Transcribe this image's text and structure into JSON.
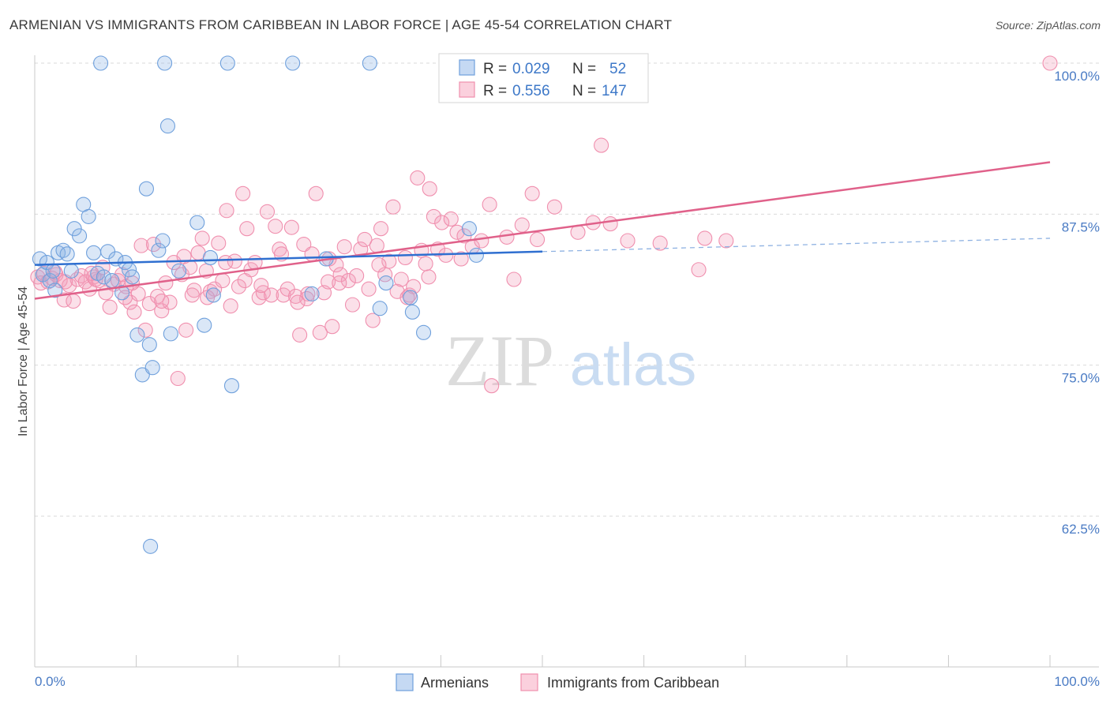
{
  "header": {
    "title": "ARMENIAN VS IMMIGRANTS FROM CARIBBEAN IN LABOR FORCE | AGE 45-54 CORRELATION CHART",
    "source": "Source: ZipAtlas.com"
  },
  "watermark": {
    "zip": "ZIP",
    "atlas": "atlas"
  },
  "legend": {
    "r_label": "R =",
    "n_label": "N =",
    "rows": [
      {
        "r": "0.029",
        "n": "52"
      },
      {
        "r": "0.556",
        "n": "147"
      }
    ]
  },
  "chart_data": {
    "type": "scatter",
    "title": "ARMENIAN VS IMMIGRANTS FROM CARIBBEAN IN LABOR FORCE | AGE 45-54 CORRELATION CHART",
    "xlabel": "",
    "ylabel": "In Labor Force | Age 45-54",
    "xlim": [
      0,
      100
    ],
    "ylim": [
      50,
      101.5
    ],
    "x_tick_labels": [
      "0.0%",
      "100.0%"
    ],
    "y_ticks": [
      62.5,
      75.0,
      87.5,
      100.0
    ],
    "y_tick_labels": [
      "62.5%",
      "75.0%",
      "87.5%",
      "100.0%"
    ],
    "grid": "horizontal dashed",
    "legend_position": "top-center",
    "colors": {
      "armenians": "#6fa0dc",
      "caribbean": "#f08fae",
      "armenians_line": "#2f6fd0",
      "caribbean_line": "#e0618a"
    },
    "series": [
      {
        "name": "Armenians",
        "r": 0.029,
        "n": 52,
        "trend": {
          "x": [
            0,
            50
          ],
          "y": [
            83.3,
            84.4
          ],
          "dashed_to": [
            100,
            85.5
          ]
        },
        "points": [
          [
            0.5,
            83.8
          ],
          [
            0.8,
            82.5
          ],
          [
            1.2,
            83.5
          ],
          [
            1.5,
            82.0
          ],
          [
            1.8,
            82.8
          ],
          [
            2.0,
            81.2
          ],
          [
            2.3,
            84.3
          ],
          [
            2.8,
            84.5
          ],
          [
            3.2,
            84.2
          ],
          [
            3.6,
            82.8
          ],
          [
            3.9,
            86.3
          ],
          [
            4.4,
            85.7
          ],
          [
            4.8,
            88.3
          ],
          [
            5.3,
            87.3
          ],
          [
            5.8,
            84.3
          ],
          [
            6.2,
            82.6
          ],
          [
            6.8,
            82.3
          ],
          [
            7.2,
            84.4
          ],
          [
            7.6,
            82.0
          ],
          [
            8.0,
            83.8
          ],
          [
            8.6,
            81.0
          ],
          [
            8.9,
            83.5
          ],
          [
            9.3,
            82.9
          ],
          [
            9.6,
            82.3
          ],
          [
            10.1,
            77.5
          ],
          [
            10.6,
            74.2
          ],
          [
            11.0,
            89.6
          ],
          [
            11.3,
            76.7
          ],
          [
            11.6,
            74.8
          ],
          [
            12.2,
            84.5
          ],
          [
            12.6,
            85.3
          ],
          [
            13.1,
            94.8
          ],
          [
            13.4,
            77.6
          ],
          [
            14.2,
            82.8
          ],
          [
            16.0,
            86.8
          ],
          [
            16.7,
            78.3
          ],
          [
            17.3,
            83.9
          ],
          [
            17.6,
            80.8
          ],
          [
            19.4,
            73.3
          ],
          [
            11.4,
            60.0
          ],
          [
            6.5,
            100
          ],
          [
            12.8,
            100
          ],
          [
            19.0,
            100
          ],
          [
            25.4,
            100
          ],
          [
            33.0,
            100
          ],
          [
            27.3,
            80.9
          ],
          [
            28.7,
            83.8
          ],
          [
            34.0,
            79.7
          ],
          [
            34.6,
            81.8
          ],
          [
            37.2,
            79.4
          ],
          [
            38.3,
            77.7
          ],
          [
            37.0,
            80.6
          ],
          [
            42.8,
            86.3
          ],
          [
            43.5,
            84.1
          ]
        ]
      },
      {
        "name": "Immigrants from Caribbean",
        "r": 0.556,
        "n": 147,
        "trend": {
          "x": [
            0,
            100
          ],
          "y": [
            80.5,
            91.8
          ]
        },
        "points": [
          [
            0.3,
            82.3
          ],
          [
            0.6,
            81.8
          ],
          [
            0.9,
            82.6
          ],
          [
            1.3,
            81.9
          ],
          [
            1.7,
            82.2
          ],
          [
            2.1,
            82.5
          ],
          [
            2.5,
            82.0
          ],
          [
            2.9,
            80.4
          ],
          [
            3.4,
            81.6
          ],
          [
            3.8,
            80.3
          ],
          [
            4.2,
            82.1
          ],
          [
            4.6,
            82.4
          ],
          [
            5.0,
            81.9
          ],
          [
            5.4,
            81.3
          ],
          [
            5.8,
            82.3
          ],
          [
            6.3,
            82.0
          ],
          [
            6.7,
            83.1
          ],
          [
            7.0,
            81.0
          ],
          [
            7.4,
            79.8
          ],
          [
            7.8,
            81.7
          ],
          [
            8.2,
            82.0
          ],
          [
            8.6,
            82.5
          ],
          [
            9.0,
            81.5
          ],
          [
            9.4,
            80.2
          ],
          [
            9.8,
            79.4
          ],
          [
            10.2,
            80.9
          ],
          [
            10.5,
            84.9
          ],
          [
            10.9,
            77.9
          ],
          [
            11.3,
            80.1
          ],
          [
            11.7,
            85.0
          ],
          [
            12.1,
            80.7
          ],
          [
            12.5,
            79.5
          ],
          [
            12.9,
            81.8
          ],
          [
            13.3,
            80.2
          ],
          [
            13.7,
            83.5
          ],
          [
            14.1,
            73.9
          ],
          [
            14.5,
            82.5
          ],
          [
            14.9,
            77.9
          ],
          [
            15.3,
            83.1
          ],
          [
            15.7,
            81.2
          ],
          [
            16.1,
            84.3
          ],
          [
            16.5,
            85.5
          ],
          [
            16.9,
            82.8
          ],
          [
            17.3,
            81.1
          ],
          [
            17.7,
            81.3
          ],
          [
            18.1,
            85.1
          ],
          [
            18.5,
            82.0
          ],
          [
            18.9,
            87.8
          ],
          [
            19.3,
            79.9
          ],
          [
            19.7,
            83.6
          ],
          [
            20.1,
            81.5
          ],
          [
            20.5,
            89.2
          ],
          [
            20.9,
            86.3
          ],
          [
            21.3,
            82.9
          ],
          [
            21.7,
            83.5
          ],
          [
            22.1,
            80.6
          ],
          [
            22.5,
            81.0
          ],
          [
            22.9,
            87.7
          ],
          [
            23.3,
            80.8
          ],
          [
            23.7,
            86.5
          ],
          [
            24.1,
            84.6
          ],
          [
            24.5,
            80.8
          ],
          [
            24.9,
            81.3
          ],
          [
            25.3,
            86.4
          ],
          [
            25.7,
            80.7
          ],
          [
            26.1,
            77.5
          ],
          [
            26.5,
            85.0
          ],
          [
            26.9,
            80.9
          ],
          [
            27.3,
            84.2
          ],
          [
            27.7,
            89.2
          ],
          [
            28.1,
            77.7
          ],
          [
            28.5,
            81.0
          ],
          [
            28.9,
            81.9
          ],
          [
            29.3,
            78.2
          ],
          [
            29.7,
            83.3
          ],
          [
            30.1,
            82.5
          ],
          [
            30.5,
            84.8
          ],
          [
            30.9,
            82.0
          ],
          [
            31.3,
            80.0
          ],
          [
            31.7,
            82.4
          ],
          [
            32.1,
            84.6
          ],
          [
            32.5,
            85.4
          ],
          [
            32.9,
            81.3
          ],
          [
            33.3,
            78.7
          ],
          [
            33.7,
            84.9
          ],
          [
            34.1,
            86.3
          ],
          [
            34.5,
            82.5
          ],
          [
            34.9,
            83.6
          ],
          [
            35.3,
            88.1
          ],
          [
            35.7,
            81.1
          ],
          [
            36.1,
            82.1
          ],
          [
            36.5,
            83.9
          ],
          [
            36.9,
            80.8
          ],
          [
            37.3,
            81.5
          ],
          [
            37.7,
            90.5
          ],
          [
            38.1,
            84.5
          ],
          [
            38.5,
            83.4
          ],
          [
            38.9,
            89.6
          ],
          [
            39.3,
            87.3
          ],
          [
            39.7,
            84.6
          ],
          [
            40.1,
            86.8
          ],
          [
            40.5,
            84.1
          ],
          [
            41.0,
            87.1
          ],
          [
            41.6,
            86.0
          ],
          [
            42.3,
            85.7
          ],
          [
            43.1,
            84.8
          ],
          [
            44.0,
            85.3
          ],
          [
            45.0,
            73.3
          ],
          [
            46.5,
            85.6
          ],
          [
            47.2,
            82.1
          ],
          [
            48.0,
            86.6
          ],
          [
            49.5,
            85.4
          ],
          [
            51.2,
            88.1
          ],
          [
            53.5,
            86.0
          ],
          [
            55.0,
            86.8
          ],
          [
            55.8,
            93.2
          ],
          [
            56.7,
            86.7
          ],
          [
            58.4,
            85.3
          ],
          [
            61.6,
            85.1
          ],
          [
            65.4,
            82.9
          ],
          [
            66.0,
            85.5
          ],
          [
            68.1,
            85.3
          ],
          [
            100.0,
            100.0
          ],
          [
            12.5,
            80.3
          ],
          [
            17.0,
            80.6
          ],
          [
            22.3,
            81.6
          ],
          [
            26.8,
            80.5
          ],
          [
            30.0,
            81.8
          ],
          [
            36.7,
            80.6
          ],
          [
            42.0,
            83.8
          ],
          [
            2.0,
            82.7
          ],
          [
            3.0,
            81.9
          ],
          [
            6.0,
            82.1
          ],
          [
            9.6,
            81.8
          ],
          [
            14.7,
            84.0
          ],
          [
            18.8,
            83.5
          ],
          [
            24.3,
            84.2
          ],
          [
            29.0,
            83.8
          ],
          [
            33.9,
            83.3
          ],
          [
            38.8,
            82.3
          ],
          [
            44.8,
            88.3
          ],
          [
            49.0,
            89.2
          ],
          [
            5.6,
            82.6
          ],
          [
            8.9,
            80.6
          ],
          [
            15.5,
            80.8
          ],
          [
            20.7,
            82.0
          ],
          [
            25.9,
            80.2
          ]
        ]
      }
    ]
  },
  "bottom_legend": [
    {
      "label": "Armenians"
    },
    {
      "label": "Immigrants from Caribbean"
    }
  ]
}
